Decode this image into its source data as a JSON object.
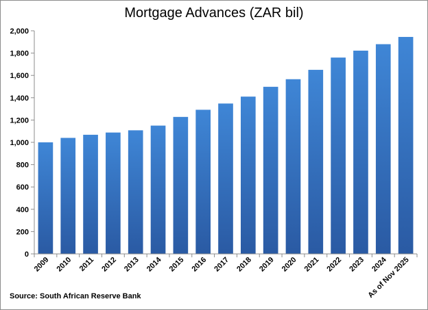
{
  "chart_data": {
    "type": "bar",
    "title": "Mortgage Advances (ZAR bil)",
    "categories": [
      "2009",
      "2010",
      "2011",
      "2012",
      "2013",
      "2014",
      "2015",
      "2016",
      "2017",
      "2018",
      "2019",
      "2020",
      "2021",
      "2022",
      "2023",
      "2024",
      "As of Nov 2025"
    ],
    "values": [
      1000,
      1040,
      1068,
      1088,
      1108,
      1150,
      1228,
      1292,
      1348,
      1410,
      1498,
      1566,
      1650,
      1760,
      1822,
      1880,
      1945
    ],
    "ylim": [
      0,
      2000
    ],
    "yticks": [
      "0",
      "200",
      "400",
      "600",
      "800",
      "1,000",
      "1,200",
      "1,400",
      "1,600",
      "1,800",
      "2,000"
    ],
    "grid": false,
    "legend": "none",
    "colors": {
      "bar_top": "#3f86d6",
      "bar_bottom": "#2a5aa3",
      "axis": "#8c8c8c"
    }
  },
  "source": "Source: South African Reserve Bank"
}
